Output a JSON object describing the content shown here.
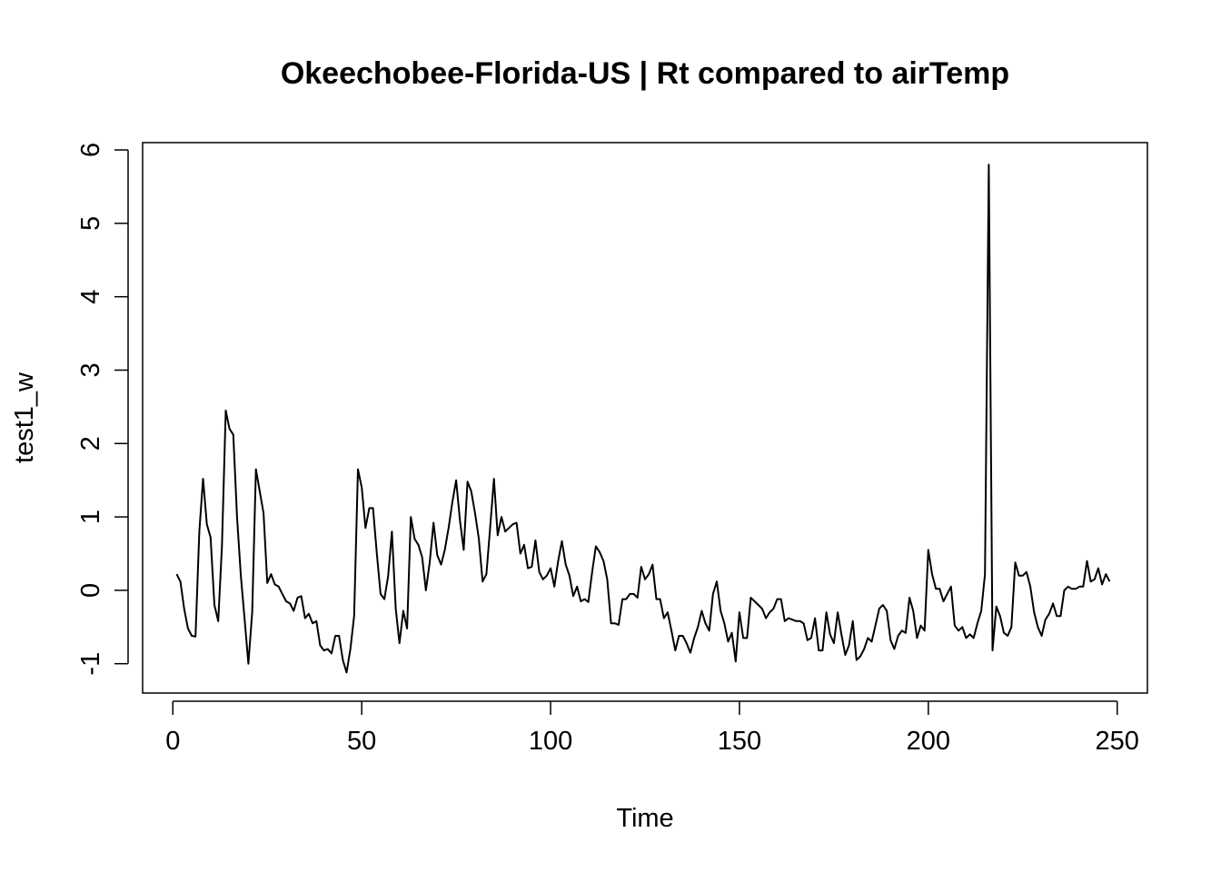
{
  "chart_data": {
    "type": "line",
    "title": "Okeechobee-Florida-US | Rt compared to airTemp",
    "xlabel": "Time",
    "ylabel": "test1_w",
    "xlim": [
      -8,
      258
    ],
    "ylim": [
      -1.4,
      6.1
    ],
    "xticks": [
      0,
      50,
      100,
      150,
      200,
      250
    ],
    "yticks": [
      -1,
      0,
      1,
      2,
      3,
      4,
      5,
      6
    ],
    "grid": false,
    "legend": "none",
    "line_color": "#000000",
    "series": [
      {
        "x": [
          1,
          2,
          3,
          4,
          5,
          6,
          7,
          8,
          9,
          10,
          11,
          12,
          13,
          14,
          15,
          16,
          17,
          18,
          19,
          20,
          21,
          22,
          23,
          24,
          25,
          26,
          27,
          28,
          29,
          30,
          31,
          32,
          33,
          34,
          35,
          36,
          37,
          38,
          39,
          40,
          41,
          42,
          43,
          44,
          45,
          46,
          47,
          48,
          49,
          50,
          51,
          52,
          53,
          54,
          55,
          56,
          57,
          58,
          59,
          60,
          61,
          62,
          63,
          64,
          65,
          66,
          67,
          68,
          69,
          70,
          71,
          72,
          73,
          74,
          75,
          76,
          77,
          78,
          79,
          80,
          81,
          82,
          83,
          84,
          85,
          86,
          87,
          88,
          89,
          90,
          91,
          92,
          93,
          94,
          95,
          96,
          97,
          98,
          99,
          100,
          101,
          102,
          103,
          104,
          105,
          106,
          107,
          108,
          109,
          110,
          111,
          112,
          113,
          114,
          115,
          116,
          117,
          118,
          119,
          120,
          121,
          122,
          123,
          124,
          125,
          126,
          127,
          128,
          129,
          130,
          131,
          132,
          133,
          134,
          135,
          136,
          137,
          138,
          139,
          140,
          141,
          142,
          143,
          144,
          145,
          146,
          147,
          148,
          149,
          150,
          151,
          152,
          153,
          154,
          155,
          156,
          157,
          158,
          159,
          160,
          161,
          162,
          163,
          164,
          165,
          166,
          167,
          168,
          169,
          170,
          171,
          172,
          173,
          174,
          175,
          176,
          177,
          178,
          179,
          180,
          181,
          182,
          183,
          184,
          185,
          186,
          187,
          188,
          189,
          190,
          191,
          192,
          193,
          194,
          195,
          196,
          197,
          198,
          199,
          200,
          201,
          202,
          203,
          204,
          205,
          206,
          207,
          208,
          209,
          210,
          211,
          212,
          213,
          214,
          215,
          216,
          217,
          218,
          219,
          220,
          221,
          222,
          223,
          224,
          225,
          226,
          227,
          228,
          229,
          230,
          231,
          232,
          233,
          234,
          235,
          236,
          237,
          238,
          239,
          240,
          241,
          242,
          243,
          244,
          245,
          246,
          247,
          248
        ],
        "y": [
          0.22,
          0.12,
          -0.25,
          -0.52,
          -0.62,
          -0.63,
          0.8,
          1.52,
          0.9,
          0.72,
          -0.2,
          -0.42,
          0.6,
          2.45,
          2.2,
          2.12,
          1.0,
          0.2,
          -0.4,
          -1.0,
          -0.3,
          1.65,
          1.35,
          1.05,
          0.1,
          0.22,
          0.08,
          0.05,
          -0.05,
          -0.15,
          -0.18,
          -0.28,
          -0.1,
          -0.08,
          -0.38,
          -0.32,
          -0.45,
          -0.42,
          -0.75,
          -0.82,
          -0.8,
          -0.86,
          -0.62,
          -0.62,
          -0.95,
          -1.12,
          -0.8,
          -0.35,
          1.65,
          1.4,
          0.85,
          1.12,
          1.12,
          0.5,
          -0.05,
          -0.12,
          0.2,
          0.8,
          -0.25,
          -0.72,
          -0.28,
          -0.52,
          1.0,
          0.7,
          0.62,
          0.45,
          0.0,
          0.38,
          0.92,
          0.48,
          0.35,
          0.55,
          0.85,
          1.2,
          1.5,
          0.95,
          0.55,
          1.48,
          1.35,
          1.05,
          0.7,
          0.12,
          0.22,
          0.85,
          1.52,
          0.75,
          1.0,
          0.8,
          0.85,
          0.9,
          0.92,
          0.5,
          0.62,
          0.3,
          0.32,
          0.68,
          0.25,
          0.15,
          0.2,
          0.3,
          0.05,
          0.4,
          0.67,
          0.35,
          0.2,
          -0.08,
          0.05,
          -0.15,
          -0.12,
          -0.16,
          0.25,
          0.6,
          0.52,
          0.4,
          0.15,
          -0.45,
          -0.45,
          -0.47,
          -0.12,
          -0.12,
          -0.05,
          -0.05,
          -0.1,
          0.32,
          0.15,
          0.22,
          0.35,
          -0.12,
          -0.12,
          -0.38,
          -0.3,
          -0.55,
          -0.82,
          -0.62,
          -0.62,
          -0.72,
          -0.85,
          -0.65,
          -0.5,
          -0.28,
          -0.45,
          -0.55,
          -0.05,
          0.12,
          -0.28,
          -0.45,
          -0.7,
          -0.58,
          -0.97,
          -0.3,
          -0.65,
          -0.65,
          -0.1,
          -0.15,
          -0.2,
          -0.25,
          -0.38,
          -0.3,
          -0.25,
          -0.12,
          -0.12,
          -0.42,
          -0.38,
          -0.4,
          -0.42,
          -0.42,
          -0.45,
          -0.68,
          -0.65,
          -0.38,
          -0.82,
          -0.82,
          -0.3,
          -0.6,
          -0.72,
          -0.3,
          -0.6,
          -0.88,
          -0.75,
          -0.42,
          -0.95,
          -0.9,
          -0.8,
          -0.65,
          -0.7,
          -0.48,
          -0.25,
          -0.2,
          -0.28,
          -0.68,
          -0.8,
          -0.62,
          -0.55,
          -0.58,
          -0.1,
          -0.28,
          -0.65,
          -0.48,
          -0.55,
          0.55,
          0.22,
          0.02,
          0.02,
          -0.15,
          -0.05,
          0.05,
          -0.48,
          -0.55,
          -0.5,
          -0.65,
          -0.6,
          -0.65,
          -0.45,
          -0.28,
          0.22,
          5.8,
          -0.82,
          -0.22,
          -0.35,
          -0.58,
          -0.62,
          -0.5,
          0.38,
          0.2,
          0.2,
          0.25,
          0.05,
          -0.3,
          -0.5,
          -0.62,
          -0.4,
          -0.32,
          -0.18,
          -0.35,
          -0.35,
          0.0,
          0.05,
          0.02,
          0.02,
          0.05,
          0.05,
          0.4,
          0.12,
          0.15,
          0.3,
          0.08,
          0.22,
          0.12
        ]
      }
    ]
  }
}
